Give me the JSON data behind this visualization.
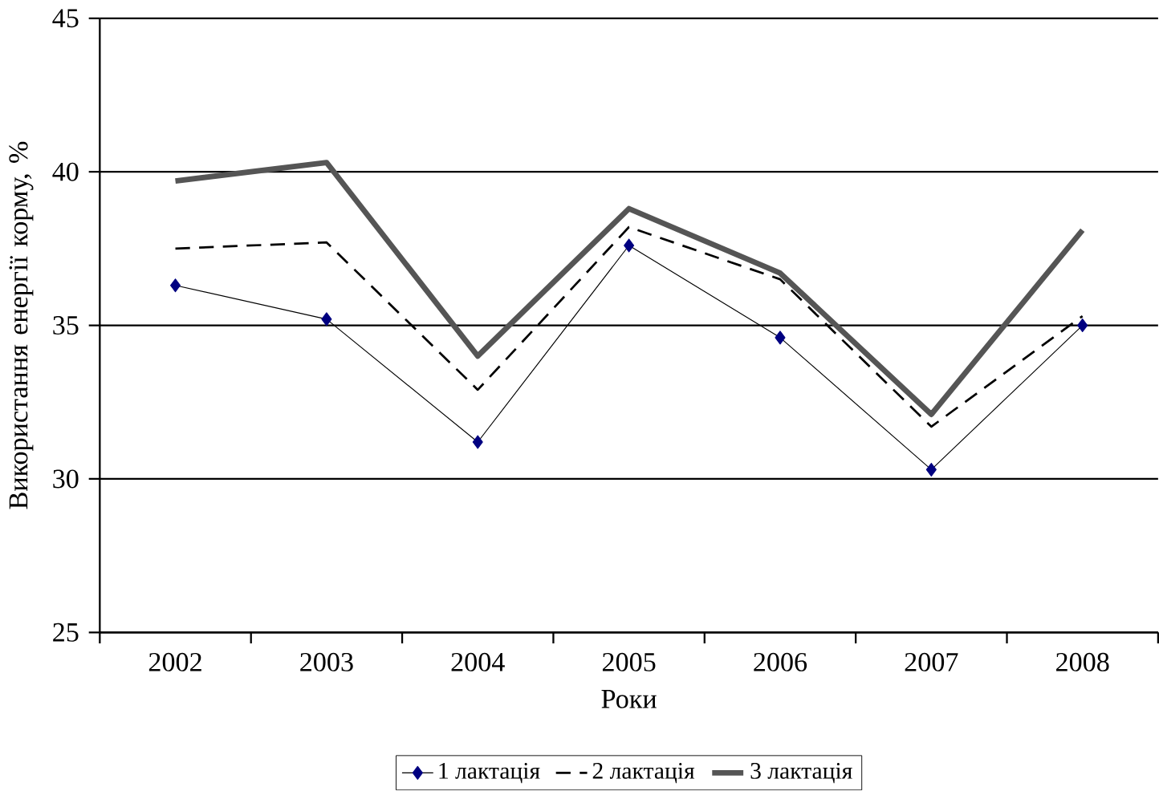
{
  "chart_data": {
    "type": "line",
    "xlabel": "Роки",
    "ylabel": "Використання енергії корму, %",
    "categories": [
      "2002",
      "2003",
      "2004",
      "2005",
      "2006",
      "2007",
      "2008"
    ],
    "ylim": [
      25,
      45
    ],
    "yticks": [
      25,
      30,
      35,
      40,
      45
    ],
    "grid": "y",
    "legend": "bottom",
    "series": [
      {
        "name": "1 лактація",
        "color": "#000000",
        "values": [
          36.3,
          35.2,
          31.2,
          37.6,
          34.6,
          30.3,
          35.0
        ],
        "marker": "diamond",
        "line_style": "solid"
      },
      {
        "name": "2 лактація",
        "color": "#000000",
        "values": [
          37.5,
          37.7,
          32.9,
          38.2,
          36.5,
          31.7,
          35.3
        ],
        "marker": "none",
        "line_style": "dashed"
      },
      {
        "name": "3 лактація",
        "color": "#555555",
        "values": [
          39.7,
          40.3,
          34.0,
          38.8,
          36.7,
          32.1,
          38.1
        ],
        "marker": "none",
        "line_style": "solid"
      }
    ]
  }
}
